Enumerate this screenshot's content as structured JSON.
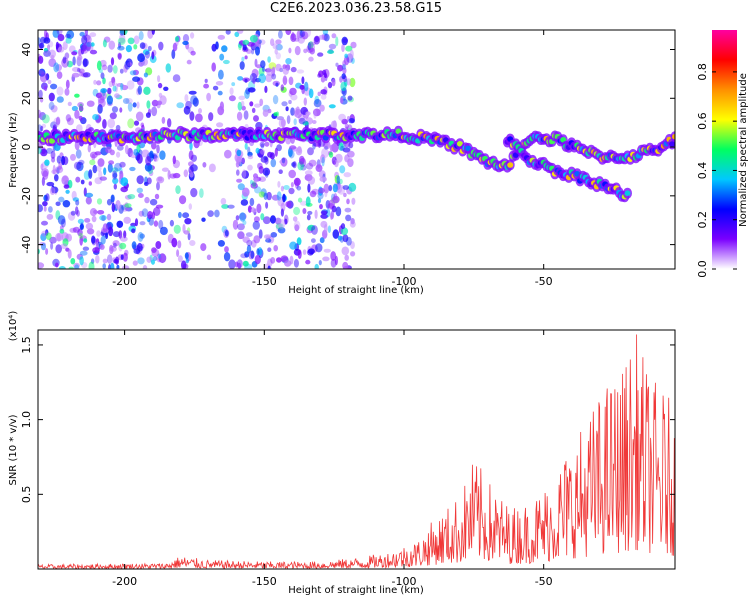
{
  "title": "C2E6.2023.036.23.58.G15",
  "chart_data": [
    {
      "type": "heatmap",
      "xlabel": "Height of straight line (km)",
      "ylabel": "Frequency (Hz)",
      "xlim": [
        -231,
        -3
      ],
      "ylim": [
        -50,
        48
      ],
      "x_ticks": [
        "-200",
        "-150",
        "-100",
        "-50"
      ],
      "y_ticks": [
        "-40",
        "-20",
        "0",
        "20",
        "40"
      ],
      "colorbar": {
        "label": "Normalized spectral amplitude",
        "range": [
          0,
          0.97
        ],
        "ticks": [
          "0.0",
          "0.2",
          "0.4",
          "0.6",
          "0.8"
        ],
        "colors": [
          "#ffffff",
          "#7a00ff",
          "#0000ff",
          "#00c8ff",
          "#00ff60",
          "#ffff00",
          "#ff9000",
          "#ff0000",
          "#ff00a0"
        ]
      },
      "main_track": [
        {
          "x": -231,
          "y": 4
        },
        {
          "x": -200,
          "y": 4
        },
        {
          "x": -180,
          "y": 5
        },
        {
          "x": -160,
          "y": 5
        },
        {
          "x": -140,
          "y": 5
        },
        {
          "x": -120,
          "y": 5
        },
        {
          "x": -100,
          "y": 5
        },
        {
          "x": -90,
          "y": 3
        },
        {
          "x": -80,
          "y": 0
        },
        {
          "x": -70,
          "y": -6
        },
        {
          "x": -63,
          "y": -8
        },
        {
          "x": -55,
          "y": 4
        },
        {
          "x": -45,
          "y": 3
        },
        {
          "x": -35,
          "y": -2
        },
        {
          "x": -28,
          "y": -4
        },
        {
          "x": -20,
          "y": -4
        },
        {
          "x": -10,
          "y": -1
        },
        {
          "x": -3,
          "y": 3
        }
      ],
      "branch_track": [
        {
          "x": -63,
          "y": 3
        },
        {
          "x": -55,
          "y": -5
        },
        {
          "x": -45,
          "y": -10
        },
        {
          "x": -35,
          "y": -13
        },
        {
          "x": -28,
          "y": -16
        },
        {
          "x": -20,
          "y": -20
        }
      ],
      "noise_region_x": [
        -231,
        -118
      ]
    },
    {
      "type": "line",
      "xlabel": "Height of straight line (km)",
      "ylabel": "SNR (10 * v/v)",
      "scale_label": "(x10⁴)",
      "xlim": [
        -231,
        -3
      ],
      "ylim": [
        0,
        1.6
      ],
      "x_ticks": [
        "-200",
        "-150",
        "-100",
        "-50"
      ],
      "y_ticks": [
        "0.5",
        "1.0",
        "1.5"
      ],
      "color": "#f03838",
      "envelope": [
        {
          "x": -231,
          "y": 0.03
        },
        {
          "x": -185,
          "y": 0.04
        },
        {
          "x": -180,
          "y": 0.09
        },
        {
          "x": -170,
          "y": 0.06
        },
        {
          "x": -150,
          "y": 0.05
        },
        {
          "x": -130,
          "y": 0.05
        },
        {
          "x": -115,
          "y": 0.08
        },
        {
          "x": -105,
          "y": 0.12
        },
        {
          "x": -95,
          "y": 0.2
        },
        {
          "x": -90,
          "y": 0.32
        },
        {
          "x": -80,
          "y": 0.5
        },
        {
          "x": -75,
          "y": 0.75
        },
        {
          "x": -68,
          "y": 0.55
        },
        {
          "x": -62,
          "y": 0.42
        },
        {
          "x": -56,
          "y": 0.45
        },
        {
          "x": -50,
          "y": 0.55
        },
        {
          "x": -42,
          "y": 0.8
        },
        {
          "x": -35,
          "y": 1.0
        },
        {
          "x": -28,
          "y": 1.25
        },
        {
          "x": -22,
          "y": 1.35
        },
        {
          "x": -17,
          "y": 1.6
        },
        {
          "x": -12,
          "y": 1.3
        },
        {
          "x": -7,
          "y": 1.2
        },
        {
          "x": -3,
          "y": 1.1
        }
      ]
    }
  ]
}
